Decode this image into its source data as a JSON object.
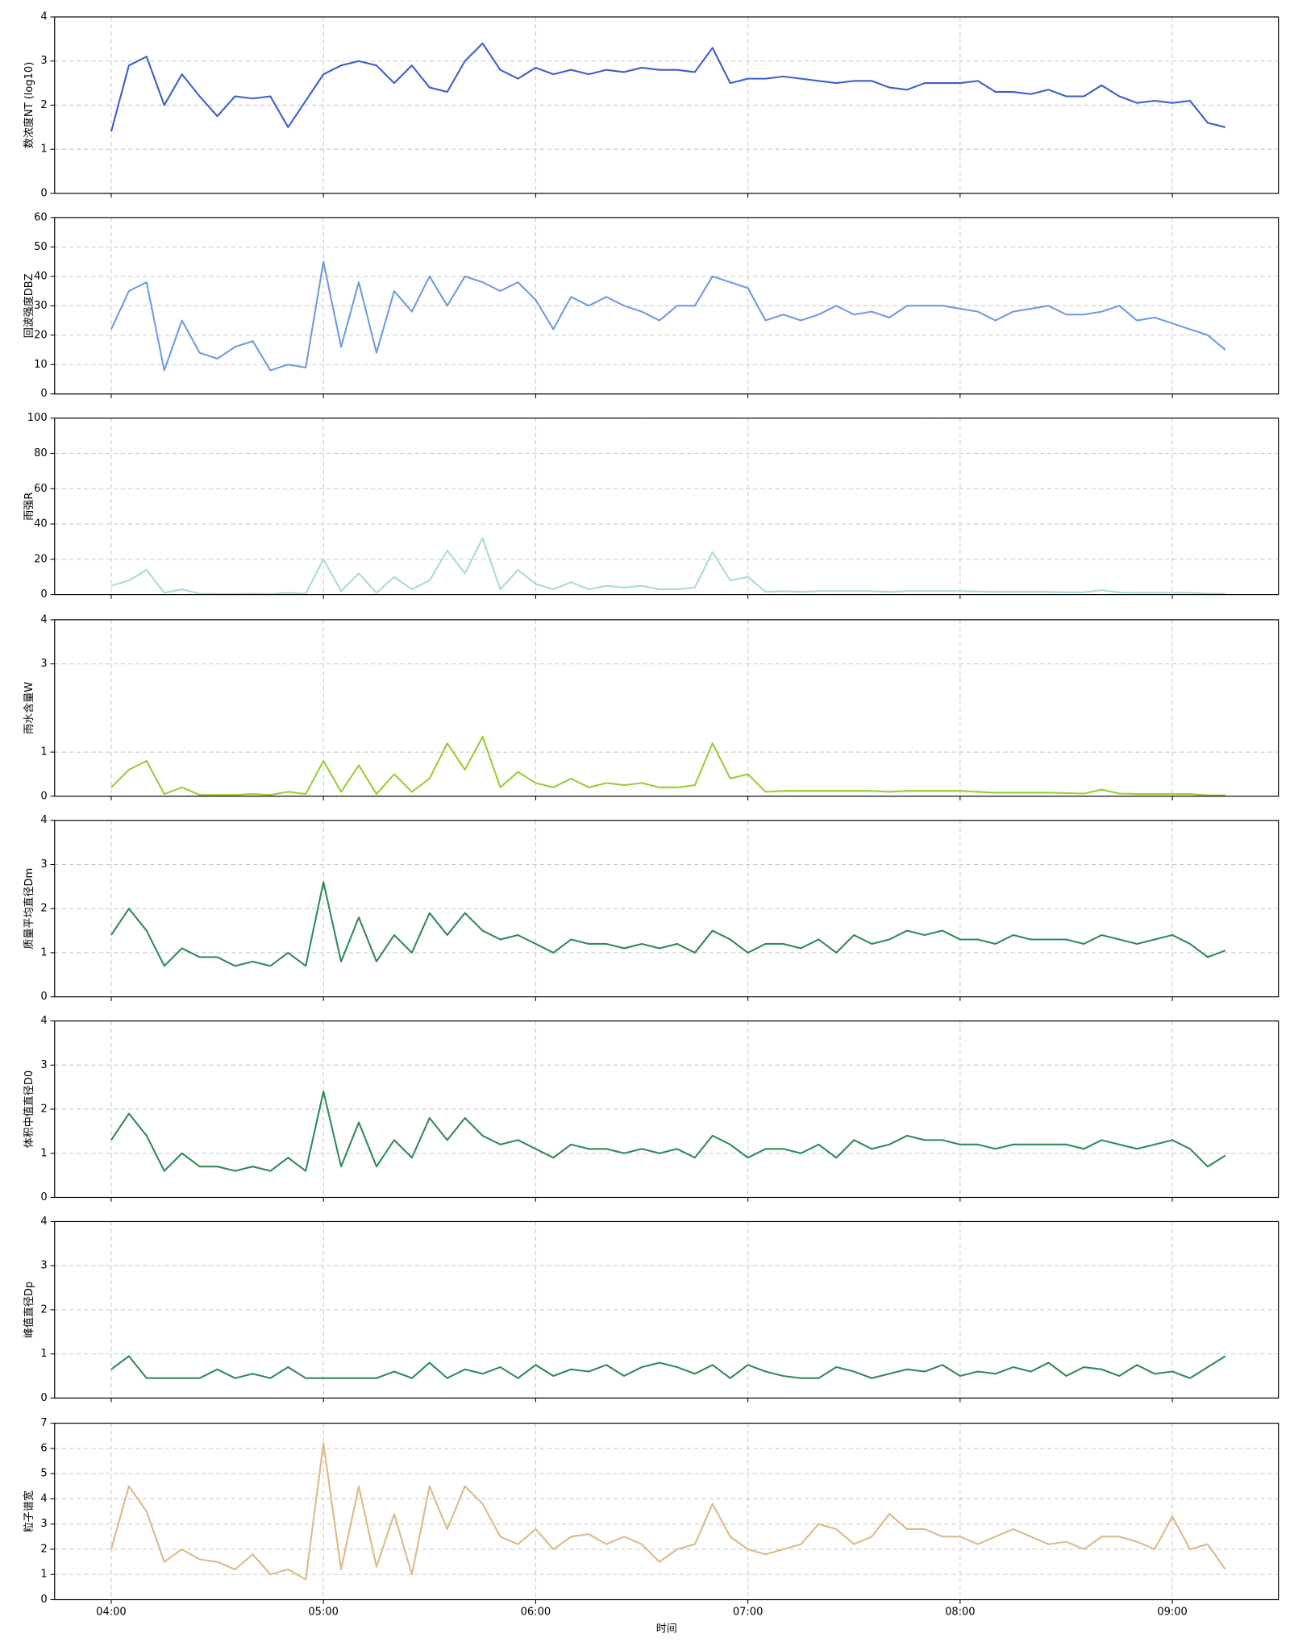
{
  "chart_data": [
    {
      "type": "line",
      "ylabel": "数浓度NT (log10)",
      "color": "#3a5fcd",
      "x": [
        "04:00",
        "04:05",
        "04:10",
        "04:15",
        "04:20",
        "04:25",
        "04:30",
        "04:35",
        "04:40",
        "04:45",
        "04:50",
        "04:55",
        "05:00",
        "05:05",
        "05:10",
        "05:15",
        "05:20",
        "05:25",
        "05:30",
        "05:35",
        "05:40",
        "05:45",
        "05:50",
        "05:55",
        "06:00",
        "06:05",
        "06:10",
        "06:15",
        "06:20",
        "06:25",
        "06:30",
        "06:35",
        "06:40",
        "06:45",
        "06:50",
        "06:55",
        "07:00",
        "07:05",
        "07:10",
        "07:15",
        "07:20",
        "07:25",
        "07:30",
        "07:35",
        "07:40",
        "07:45",
        "07:50",
        "07:55",
        "08:00",
        "08:05",
        "08:10",
        "08:15",
        "08:20",
        "08:25",
        "08:30",
        "08:35",
        "08:40",
        "08:45",
        "08:50",
        "08:55",
        "09:00",
        "09:05",
        "09:10",
        "09:15"
      ],
      "values": [
        1.4,
        2.9,
        3.1,
        2.0,
        2.7,
        2.2,
        1.75,
        2.2,
        2.15,
        2.2,
        1.5,
        2.1,
        2.7,
        2.9,
        3.0,
        2.9,
        2.5,
        2.9,
        2.4,
        2.3,
        3.0,
        3.4,
        2.8,
        2.6,
        2.85,
        2.7,
        2.8,
        2.7,
        2.8,
        2.75,
        2.85,
        2.8,
        2.8,
        2.75,
        3.3,
        2.5,
        2.6,
        2.6,
        2.65,
        2.6,
        2.55,
        2.5,
        2.55,
        2.55,
        2.4,
        2.35,
        2.5,
        2.5,
        2.5,
        2.55,
        2.3,
        2.3,
        2.25,
        2.35,
        2.2,
        2.2,
        2.45,
        2.2,
        2.05,
        2.1,
        2.05,
        2.1,
        1.6,
        1.5
      ],
      "xlim": [
        "03:44",
        "09:30"
      ],
      "xticks": [
        "04:00",
        "05:00",
        "06:00",
        "07:00",
        "08:00",
        "09:00"
      ],
      "ylim": [
        0,
        4
      ],
      "yticks": [
        0,
        1,
        2,
        3,
        4
      ],
      "grid": true
    },
    {
      "type": "line",
      "ylabel": "回波强度DBZ",
      "color": "#6f9be0",
      "x": [
        "04:00",
        "04:05",
        "04:10",
        "04:15",
        "04:20",
        "04:25",
        "04:30",
        "04:35",
        "04:40",
        "04:45",
        "04:50",
        "04:55",
        "05:00",
        "05:05",
        "05:10",
        "05:15",
        "05:20",
        "05:25",
        "05:30",
        "05:35",
        "05:40",
        "05:45",
        "05:50",
        "05:55",
        "06:00",
        "06:05",
        "06:10",
        "06:15",
        "06:20",
        "06:25",
        "06:30",
        "06:35",
        "06:40",
        "06:45",
        "06:50",
        "06:55",
        "07:00",
        "07:05",
        "07:10",
        "07:15",
        "07:20",
        "07:25",
        "07:30",
        "07:35",
        "07:40",
        "07:45",
        "07:50",
        "07:55",
        "08:00",
        "08:05",
        "08:10",
        "08:15",
        "08:20",
        "08:25",
        "08:30",
        "08:35",
        "08:40",
        "08:45",
        "08:50",
        "08:55",
        "09:00",
        "09:05",
        "09:10",
        "09:15"
      ],
      "values": [
        22,
        35,
        38,
        8,
        25,
        14,
        12,
        16,
        18,
        8,
        10,
        9,
        45,
        16,
        38,
        14,
        35,
        28,
        40,
        30,
        40,
        38,
        35,
        38,
        32,
        22,
        33,
        30,
        33,
        30,
        28,
        25,
        30,
        30,
        40,
        38,
        36,
        25,
        27,
        25,
        27,
        30,
        27,
        28,
        26,
        30,
        30,
        30,
        29,
        28,
        25,
        28,
        29,
        30,
        27,
        27,
        28,
        30,
        25,
        26,
        24,
        22,
        20,
        15
      ],
      "xlim": [
        "03:44",
        "09:30"
      ],
      "xticks": [
        "04:00",
        "05:00",
        "06:00",
        "07:00",
        "08:00",
        "09:00"
      ],
      "ylim": [
        0,
        60
      ],
      "yticks": [
        0,
        10,
        20,
        30,
        40,
        50,
        60
      ],
      "grid": true
    },
    {
      "type": "line",
      "ylabel": "雨强R",
      "color": "#a8dadc",
      "x": [
        "04:00",
        "04:05",
        "04:10",
        "04:15",
        "04:20",
        "04:25",
        "04:30",
        "04:35",
        "04:40",
        "04:45",
        "04:50",
        "04:55",
        "05:00",
        "05:05",
        "05:10",
        "05:15",
        "05:20",
        "05:25",
        "05:30",
        "05:35",
        "05:40",
        "05:45",
        "05:50",
        "05:55",
        "06:00",
        "06:05",
        "06:10",
        "06:15",
        "06:20",
        "06:25",
        "06:30",
        "06:35",
        "06:40",
        "06:45",
        "06:50",
        "06:55",
        "07:00",
        "07:05",
        "07:10",
        "07:15",
        "07:20",
        "07:25",
        "07:30",
        "07:35",
        "07:40",
        "07:45",
        "07:50",
        "07:55",
        "08:00",
        "08:05",
        "08:10",
        "08:15",
        "08:20",
        "08:25",
        "08:30",
        "08:35",
        "08:40",
        "08:45",
        "08:50",
        "08:55",
        "09:00",
        "09:05",
        "09:10",
        "09:15"
      ],
      "values": [
        5,
        8,
        14,
        1,
        3,
        0.5,
        0.3,
        0.3,
        0.5,
        0.3,
        1,
        0.5,
        20,
        2,
        12,
        1,
        10,
        3,
        8,
        25,
        12,
        32,
        3,
        14,
        6,
        3,
        7,
        3,
        5,
        4,
        5,
        3,
        3,
        4,
        24,
        8,
        10,
        1.5,
        2,
        1.5,
        2,
        2,
        2,
        2,
        1.5,
        2,
        2,
        2,
        2,
        1.8,
        1.5,
        1.5,
        1.5,
        1.5,
        1.3,
        1.3,
        2.5,
        1.2,
        1,
        1,
        1,
        1,
        0.5,
        0.5
      ],
      "xlim": [
        "03:44",
        "09:30"
      ],
      "xticks": [
        "04:00",
        "05:00",
        "06:00",
        "07:00",
        "08:00",
        "09:00"
      ],
      "ylim": [
        0,
        100
      ],
      "yticks": [
        0,
        20,
        40,
        60,
        80,
        100
      ],
      "grid": true
    },
    {
      "type": "line",
      "ylabel": "雨水含量W",
      "color": "#9acd32",
      "x": [
        "04:00",
        "04:05",
        "04:10",
        "04:15",
        "04:20",
        "04:25",
        "04:30",
        "04:35",
        "04:40",
        "04:45",
        "04:50",
        "04:55",
        "05:00",
        "05:05",
        "05:10",
        "05:15",
        "05:20",
        "05:25",
        "05:30",
        "05:35",
        "05:40",
        "05:45",
        "05:50",
        "05:55",
        "06:00",
        "06:05",
        "06:10",
        "06:15",
        "06:20",
        "06:25",
        "06:30",
        "06:35",
        "06:40",
        "06:45",
        "06:50",
        "06:55",
        "07:00",
        "07:05",
        "07:10",
        "07:15",
        "07:20",
        "07:25",
        "07:30",
        "07:35",
        "07:40",
        "07:45",
        "07:50",
        "07:55",
        "08:00",
        "08:05",
        "08:10",
        "08:15",
        "08:20",
        "08:25",
        "08:30",
        "08:35",
        "08:40",
        "08:45",
        "08:50",
        "08:55",
        "09:00",
        "09:05",
        "09:10",
        "09:15"
      ],
      "values": [
        0.2,
        0.6,
        0.8,
        0.05,
        0.2,
        0.03,
        0.03,
        0.03,
        0.05,
        0.03,
        0.1,
        0.05,
        0.8,
        0.1,
        0.7,
        0.05,
        0.5,
        0.1,
        0.4,
        1.2,
        0.6,
        1.35,
        0.2,
        0.55,
        0.3,
        0.2,
        0.4,
        0.2,
        0.3,
        0.25,
        0.3,
        0.2,
        0.2,
        0.25,
        1.2,
        0.4,
        0.5,
        0.1,
        0.12,
        0.12,
        0.12,
        0.12,
        0.12,
        0.12,
        0.1,
        0.12,
        0.12,
        0.12,
        0.12,
        0.1,
        0.08,
        0.08,
        0.08,
        0.08,
        0.07,
        0.06,
        0.15,
        0.06,
        0.05,
        0.05,
        0.05,
        0.05,
        0.02,
        0.02
      ],
      "xlim": [
        "03:44",
        "09:30"
      ],
      "xticks": [
        "04:00",
        "05:00",
        "06:00",
        "07:00",
        "08:00",
        "09:00"
      ],
      "ylim": [
        0,
        4
      ],
      "yticks": [
        0,
        1,
        3,
        4
      ],
      "grid": true
    },
    {
      "type": "line",
      "ylabel": "质量平均直径Dm",
      "color": "#2e8b57",
      "x": [
        "04:00",
        "04:05",
        "04:10",
        "04:15",
        "04:20",
        "04:25",
        "04:30",
        "04:35",
        "04:40",
        "04:45",
        "04:50",
        "04:55",
        "05:00",
        "05:05",
        "05:10",
        "05:15",
        "05:20",
        "05:25",
        "05:30",
        "05:35",
        "05:40",
        "05:45",
        "05:50",
        "05:55",
        "06:00",
        "06:05",
        "06:10",
        "06:15",
        "06:20",
        "06:25",
        "06:30",
        "06:35",
        "06:40",
        "06:45",
        "06:50",
        "06:55",
        "07:00",
        "07:05",
        "07:10",
        "07:15",
        "07:20",
        "07:25",
        "07:30",
        "07:35",
        "07:40",
        "07:45",
        "07:50",
        "07:55",
        "08:00",
        "08:05",
        "08:10",
        "08:15",
        "08:20",
        "08:25",
        "08:30",
        "08:35",
        "08:40",
        "08:45",
        "08:50",
        "08:55",
        "09:00",
        "09:05",
        "09:10",
        "09:15"
      ],
      "values": [
        1.4,
        2.0,
        1.5,
        0.7,
        1.1,
        0.9,
        0.9,
        0.7,
        0.8,
        0.7,
        1.0,
        0.7,
        2.6,
        0.8,
        1.8,
        0.8,
        1.4,
        1.0,
        1.9,
        1.4,
        1.9,
        1.5,
        1.3,
        1.4,
        1.2,
        1.0,
        1.3,
        1.2,
        1.2,
        1.1,
        1.2,
        1.1,
        1.2,
        1.0,
        1.5,
        1.3,
        1.0,
        1.2,
        1.2,
        1.1,
        1.3,
        1.0,
        1.4,
        1.2,
        1.3,
        1.5,
        1.4,
        1.5,
        1.3,
        1.3,
        1.2,
        1.4,
        1.3,
        1.3,
        1.3,
        1.2,
        1.4,
        1.3,
        1.2,
        1.3,
        1.4,
        1.2,
        0.9,
        1.05
      ],
      "xlim": [
        "03:44",
        "09:30"
      ],
      "xticks": [
        "04:00",
        "05:00",
        "06:00",
        "07:00",
        "08:00",
        "09:00"
      ],
      "ylim": [
        0,
        4
      ],
      "yticks": [
        0,
        1,
        2,
        3,
        4
      ],
      "grid": true
    },
    {
      "type": "line",
      "ylabel": "体积中值直径D0",
      "color": "#2e8b57",
      "x": [
        "04:00",
        "04:05",
        "04:10",
        "04:15",
        "04:20",
        "04:25",
        "04:30",
        "04:35",
        "04:40",
        "04:45",
        "04:50",
        "04:55",
        "05:00",
        "05:05",
        "05:10",
        "05:15",
        "05:20",
        "05:25",
        "05:30",
        "05:35",
        "05:40",
        "05:45",
        "05:50",
        "05:55",
        "06:00",
        "06:05",
        "06:10",
        "06:15",
        "06:20",
        "06:25",
        "06:30",
        "06:35",
        "06:40",
        "06:45",
        "06:50",
        "06:55",
        "07:00",
        "07:05",
        "07:10",
        "07:15",
        "07:20",
        "07:25",
        "07:30",
        "07:35",
        "07:40",
        "07:45",
        "07:50",
        "07:55",
        "08:00",
        "08:05",
        "08:10",
        "08:15",
        "08:20",
        "08:25",
        "08:30",
        "08:35",
        "08:40",
        "08:45",
        "08:50",
        "08:55",
        "09:00",
        "09:05",
        "09:10",
        "09:15"
      ],
      "values": [
        1.3,
        1.9,
        1.4,
        0.6,
        1.0,
        0.7,
        0.7,
        0.6,
        0.7,
        0.6,
        0.9,
        0.6,
        2.4,
        0.7,
        1.7,
        0.7,
        1.3,
        0.9,
        1.8,
        1.3,
        1.8,
        1.4,
        1.2,
        1.3,
        1.1,
        0.9,
        1.2,
        1.1,
        1.1,
        1.0,
        1.1,
        1.0,
        1.1,
        0.9,
        1.4,
        1.2,
        0.9,
        1.1,
        1.1,
        1.0,
        1.2,
        0.9,
        1.3,
        1.1,
        1.2,
        1.4,
        1.3,
        1.3,
        1.2,
        1.2,
        1.1,
        1.2,
        1.2,
        1.2,
        1.2,
        1.1,
        1.3,
        1.2,
        1.1,
        1.2,
        1.3,
        1.1,
        0.7,
        0.95
      ],
      "xlim": [
        "03:44",
        "09:30"
      ],
      "xticks": [
        "04:00",
        "05:00",
        "06:00",
        "07:00",
        "08:00",
        "09:00"
      ],
      "ylim": [
        0,
        4
      ],
      "yticks": [
        0,
        1,
        2,
        3,
        4
      ],
      "grid": true
    },
    {
      "type": "line",
      "ylabel": "峰值直径Dp",
      "color": "#2e8b57",
      "x": [
        "04:00",
        "04:05",
        "04:10",
        "04:15",
        "04:20",
        "04:25",
        "04:30",
        "04:35",
        "04:40",
        "04:45",
        "04:50",
        "04:55",
        "05:00",
        "05:05",
        "05:10",
        "05:15",
        "05:20",
        "05:25",
        "05:30",
        "05:35",
        "05:40",
        "05:45",
        "05:50",
        "05:55",
        "06:00",
        "06:05",
        "06:10",
        "06:15",
        "06:20",
        "06:25",
        "06:30",
        "06:35",
        "06:40",
        "06:45",
        "06:50",
        "06:55",
        "07:00",
        "07:05",
        "07:10",
        "07:15",
        "07:20",
        "07:25",
        "07:30",
        "07:35",
        "07:40",
        "07:45",
        "07:50",
        "07:55",
        "08:00",
        "08:05",
        "08:10",
        "08:15",
        "08:20",
        "08:25",
        "08:30",
        "08:35",
        "08:40",
        "08:45",
        "08:50",
        "08:55",
        "09:00",
        "09:05",
        "09:10",
        "09:15"
      ],
      "values": [
        0.65,
        0.95,
        0.45,
        0.45,
        0.45,
        0.45,
        0.65,
        0.45,
        0.55,
        0.45,
        0.7,
        0.45,
        0.45,
        0.45,
        0.45,
        0.45,
        0.6,
        0.45,
        0.8,
        0.45,
        0.65,
        0.55,
        0.7,
        0.45,
        0.75,
        0.5,
        0.65,
        0.6,
        0.75,
        0.5,
        0.7,
        0.8,
        0.7,
        0.55,
        0.75,
        0.45,
        0.75,
        0.6,
        0.5,
        0.45,
        0.45,
        0.7,
        0.6,
        0.45,
        0.55,
        0.65,
        0.6,
        0.75,
        0.5,
        0.6,
        0.55,
        0.7,
        0.6,
        0.8,
        0.5,
        0.7,
        0.65,
        0.5,
        0.75,
        0.55,
        0.6,
        0.45,
        0.7,
        0.95
      ],
      "xlim": [
        "03:44",
        "09:30"
      ],
      "xticks": [
        "04:00",
        "05:00",
        "06:00",
        "07:00",
        "08:00",
        "09:00"
      ],
      "ylim": [
        0,
        4
      ],
      "yticks": [
        0,
        1,
        2,
        3,
        4
      ],
      "grid": true
    },
    {
      "type": "line",
      "ylabel": "粒子谱宽",
      "xlabel": "时间",
      "color": "#deb887",
      "x": [
        "04:00",
        "04:05",
        "04:10",
        "04:15",
        "04:20",
        "04:25",
        "04:30",
        "04:35",
        "04:40",
        "04:45",
        "04:50",
        "04:55",
        "05:00",
        "05:05",
        "05:10",
        "05:15",
        "05:20",
        "05:25",
        "05:30",
        "05:35",
        "05:40",
        "05:45",
        "05:50",
        "05:55",
        "06:00",
        "06:05",
        "06:10",
        "06:15",
        "06:20",
        "06:25",
        "06:30",
        "06:35",
        "06:40",
        "06:45",
        "06:50",
        "06:55",
        "07:00",
        "07:05",
        "07:10",
        "07:15",
        "07:20",
        "07:25",
        "07:30",
        "07:35",
        "07:40",
        "07:45",
        "07:50",
        "07:55",
        "08:00",
        "08:05",
        "08:10",
        "08:15",
        "08:20",
        "08:25",
        "08:30",
        "08:35",
        "08:40",
        "08:45",
        "08:50",
        "08:55",
        "09:00",
        "09:05",
        "09:10",
        "09:15"
      ],
      "values": [
        2.0,
        4.5,
        3.5,
        1.5,
        2.0,
        1.6,
        1.5,
        1.2,
        1.8,
        1.0,
        1.2,
        0.8,
        6.2,
        1.2,
        4.5,
        1.3,
        3.4,
        1.0,
        4.5,
        2.8,
        4.5,
        3.8,
        2.5,
        2.2,
        2.8,
        2.0,
        2.5,
        2.6,
        2.2,
        2.5,
        2.2,
        1.5,
        2.0,
        2.2,
        3.8,
        2.5,
        2.0,
        1.8,
        2.0,
        2.2,
        3.0,
        2.8,
        2.2,
        2.5,
        3.4,
        2.8,
        2.8,
        2.5,
        2.5,
        2.2,
        2.5,
        2.8,
        2.5,
        2.2,
        2.3,
        2.0,
        2.5,
        2.5,
        2.3,
        2.0,
        3.3,
        2.0,
        2.2,
        1.2
      ],
      "xlim": [
        "03:44",
        "09:30"
      ],
      "xticks": [
        "04:00",
        "05:00",
        "06:00",
        "07:00",
        "08:00",
        "09:00"
      ],
      "ylim": [
        0,
        7
      ],
      "yticks": [
        0,
        1,
        2,
        3,
        4,
        5,
        6,
        7
      ],
      "grid": true,
      "show_xtick_labels": true
    }
  ]
}
